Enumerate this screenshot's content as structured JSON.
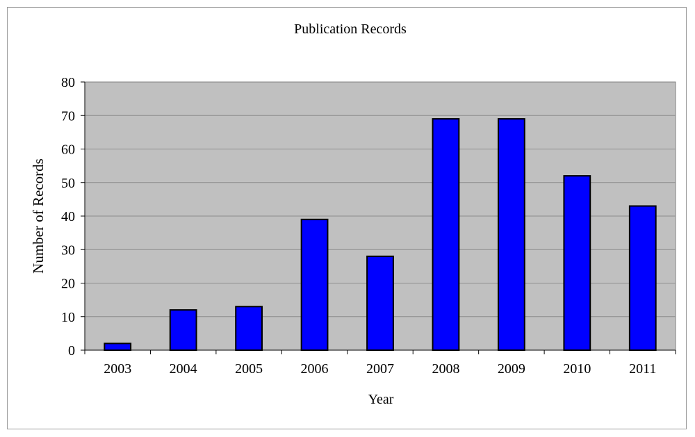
{
  "chart_data": {
    "type": "bar",
    "title": "Publication Records",
    "xlabel": "Year",
    "ylabel": "Number of Records",
    "categories": [
      "2003",
      "2004",
      "2005",
      "2006",
      "2007",
      "2008",
      "2009",
      "2010",
      "2011"
    ],
    "values": [
      2,
      12,
      13,
      39,
      28,
      69,
      69,
      52,
      43
    ],
    "ylim": [
      0,
      80
    ],
    "yticks": [
      0,
      10,
      20,
      30,
      40,
      50,
      60,
      70,
      80
    ],
    "grid": true,
    "legend": "none",
    "colors": {
      "bar": "#0000ff",
      "bar_outline": "#000000",
      "plot_background": "#c0c0c0",
      "gridline": "#8c8c8c"
    }
  }
}
